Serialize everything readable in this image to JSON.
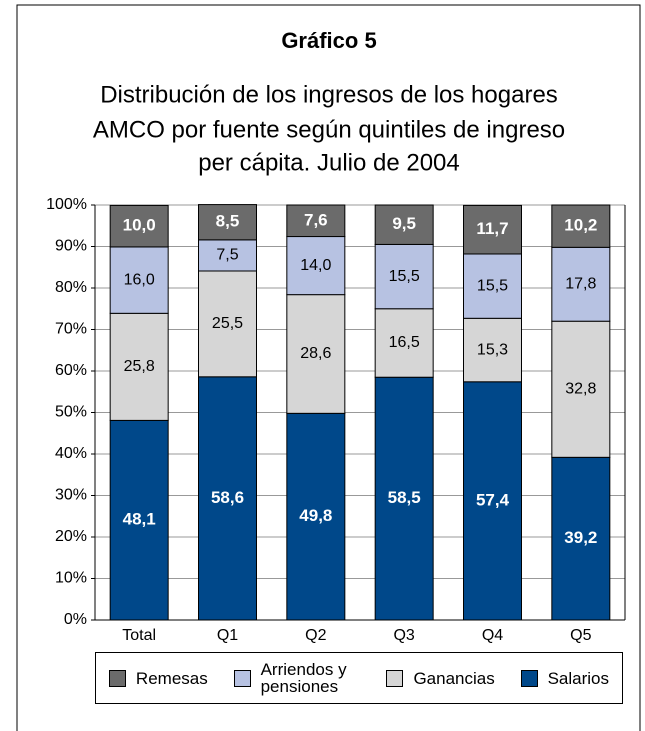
{
  "chart_data": {
    "type": "stacked_bar",
    "title": "Gráfico 5",
    "subtitle": [
      "Distribución de los ingresos de los hogares",
      "AMCO por fuente según quintiles de ingreso",
      "per cápita. Julio de 2004"
    ],
    "categories": [
      "Total",
      "Q1",
      "Q2",
      "Q3",
      "Q4",
      "Q5"
    ],
    "series": [
      {
        "name": "Remesas",
        "color": "#6b6b6b",
        "values": [
          10.0,
          8.5,
          7.6,
          9.5,
          11.7,
          10.2
        ],
        "value_labels": [
          "10,0",
          "8,5",
          "7,6",
          "9,5",
          "11,7",
          "10,2"
        ]
      },
      {
        "name": "Arriendos y pensiones",
        "color": "#b7c2e2",
        "values": [
          16.0,
          7.5,
          14.0,
          15.5,
          15.5,
          17.8
        ],
        "value_labels": [
          "16,0",
          "7,5",
          "14,0",
          "15,5",
          "15,5",
          "17,8"
        ]
      },
      {
        "name": "Ganancias",
        "color": "#d6d6d6",
        "values": [
          25.8,
          25.5,
          28.6,
          16.5,
          15.3,
          32.8
        ],
        "value_labels": [
          "25,8",
          "25,5",
          "28,6",
          "16,5",
          "15,3",
          "32,8"
        ]
      },
      {
        "name": "Salarios",
        "color": "#00488a",
        "values": [
          48.1,
          58.6,
          49.8,
          58.5,
          57.4,
          39.2
        ],
        "value_labels": [
          "48,1",
          "58,6",
          "49,8",
          "58,5",
          "57,4",
          "39,2"
        ]
      }
    ],
    "ylim": [
      0,
      100
    ],
    "yticks": [
      {
        "value": 0,
        "label": "0%"
      },
      {
        "value": 10,
        "label": "10%"
      },
      {
        "value": 20,
        "label": "20%"
      },
      {
        "value": 30,
        "label": "30%"
      },
      {
        "value": 40,
        "label": "40%"
      },
      {
        "value": 50,
        "label": "50%"
      },
      {
        "value": 60,
        "label": "60%"
      },
      {
        "value": 70,
        "label": "70%"
      },
      {
        "value": 80,
        "label": "80%"
      },
      {
        "value": 90,
        "label": "90%"
      },
      {
        "value": 100,
        "label": "100%"
      }
    ],
    "grid": true,
    "legend": "bottom"
  }
}
